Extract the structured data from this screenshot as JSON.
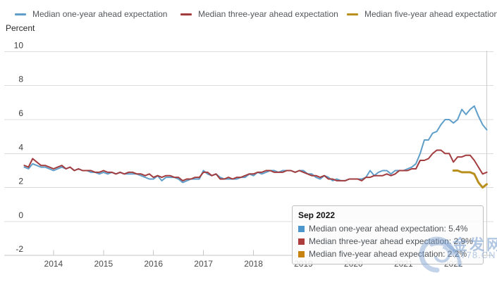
{
  "legend": {
    "items": [
      {
        "label": "Median one-year ahead expectation",
        "color": "#5f9ec9",
        "x": 21
      },
      {
        "label": "Median three-year ahead expectation",
        "color": "#a23c3f",
        "x": 256
      },
      {
        "label": "Median five-year ahead expectation",
        "color": "#b9901e",
        "x": 492
      }
    ]
  },
  "tooltip": {
    "title": "Sep 2022",
    "rows": [
      {
        "color": "#4d96cc",
        "label": "Median one-year ahead expectation",
        "value": "5.4%",
        "text": "Median one-year ahead expectation: 5.4%"
      },
      {
        "color": "#ad3c3c",
        "label": "Median three-year ahead expectation",
        "value": "2.9%",
        "text": "Median three-year ahead expectation: 2.9%"
      },
      {
        "color": "#c8820f",
        "label": "Median five-year ahead expectation",
        "value": "2.2%",
        "text": "Median five-year ahead expectation: 2.2%"
      }
    ]
  },
  "watermark": {
    "cn": "金发网",
    "en": "AT78.CN"
  },
  "chart_data": {
    "type": "line",
    "title": "",
    "ylabel": "Percent",
    "x_start": "2013-06",
    "x_interval": "monthly",
    "x_end": "2022-09",
    "x_tick_years": [
      "2014",
      "2015",
      "2016",
      "2017",
      "2018",
      "2019",
      "2020",
      "2021",
      "2022"
    ],
    "y_ticks": [
      10,
      8,
      6,
      4,
      2,
      0,
      -2
    ],
    "ylim": [
      -2,
      10
    ],
    "grid": "horizontal",
    "legend_position": "top",
    "hovered_point": "Sep 2022",
    "series": [
      {
        "name": "Median one-year ahead expectation",
        "color": "#5f9ec9",
        "start_index": 0,
        "values": [
          3.2,
          3.1,
          3.4,
          3.3,
          3.2,
          3.2,
          3.1,
          3.0,
          3.1,
          3.2,
          3.1,
          3.2,
          3.0,
          3.1,
          3.0,
          3.0,
          2.9,
          2.9,
          2.8,
          2.9,
          2.8,
          2.9,
          2.8,
          2.9,
          2.8,
          2.8,
          2.8,
          2.8,
          2.7,
          2.6,
          2.5,
          2.5,
          2.7,
          2.4,
          2.6,
          2.6,
          2.6,
          2.5,
          2.3,
          2.4,
          2.5,
          2.5,
          2.5,
          3.0,
          2.8,
          2.7,
          2.8,
          2.6,
          2.5,
          2.5,
          2.5,
          2.5,
          2.6,
          2.6,
          2.8,
          2.7,
          2.9,
          2.8,
          2.9,
          3.0,
          3.0,
          2.9,
          3.0,
          3.0,
          3.0,
          2.9,
          3.0,
          3.0,
          2.8,
          2.8,
          2.6,
          2.5,
          2.7,
          2.6,
          2.4,
          2.5,
          2.4,
          2.4,
          2.5,
          2.5,
          2.5,
          2.5,
          2.6,
          3.0,
          2.7,
          2.9,
          3.0,
          3.0,
          2.8,
          3.0,
          3.0,
          3.0,
          3.1,
          3.2,
          3.4,
          4.0,
          4.8,
          4.8,
          5.2,
          5.3,
          5.7,
          6.0,
          6.0,
          5.8,
          6.0,
          6.6,
          6.3,
          6.6,
          6.8,
          6.2,
          5.7,
          5.4
        ]
      },
      {
        "name": "Median three-year ahead expectation",
        "color": "#a23c3f",
        "start_index": 0,
        "values": [
          3.3,
          3.2,
          3.7,
          3.5,
          3.3,
          3.3,
          3.2,
          3.1,
          3.2,
          3.3,
          3.1,
          3.2,
          3.0,
          3.1,
          3.0,
          3.0,
          3.0,
          2.9,
          2.9,
          3.0,
          2.9,
          2.9,
          2.8,
          2.9,
          2.8,
          2.9,
          2.9,
          2.8,
          2.8,
          2.7,
          2.8,
          2.6,
          2.7,
          2.6,
          2.7,
          2.7,
          2.6,
          2.6,
          2.4,
          2.5,
          2.5,
          2.6,
          2.6,
          2.9,
          2.9,
          2.7,
          2.8,
          2.5,
          2.5,
          2.6,
          2.5,
          2.6,
          2.6,
          2.7,
          2.8,
          2.8,
          2.9,
          2.9,
          3.0,
          3.0,
          2.9,
          2.9,
          2.9,
          3.0,
          3.0,
          2.9,
          3.0,
          2.9,
          2.8,
          2.7,
          2.7,
          2.6,
          2.7,
          2.5,
          2.5,
          2.4,
          2.4,
          2.4,
          2.5,
          2.5,
          2.5,
          2.4,
          2.6,
          2.6,
          2.7,
          2.7,
          2.7,
          2.8,
          2.7,
          2.8,
          3.0,
          3.0,
          3.0,
          3.1,
          3.1,
          3.6,
          3.6,
          3.7,
          4.0,
          4.2,
          4.2,
          4.0,
          4.0,
          3.5,
          3.8,
          3.8,
          3.9,
          3.9,
          3.6,
          3.2,
          2.8,
          2.9
        ]
      },
      {
        "name": "Median five-year ahead expectation",
        "color": "#b9901e",
        "start_index": 103,
        "values": [
          3.0,
          3.0,
          2.9,
          2.9,
          2.9,
          2.8,
          2.3,
          2.0,
          2.2
        ]
      }
    ]
  }
}
